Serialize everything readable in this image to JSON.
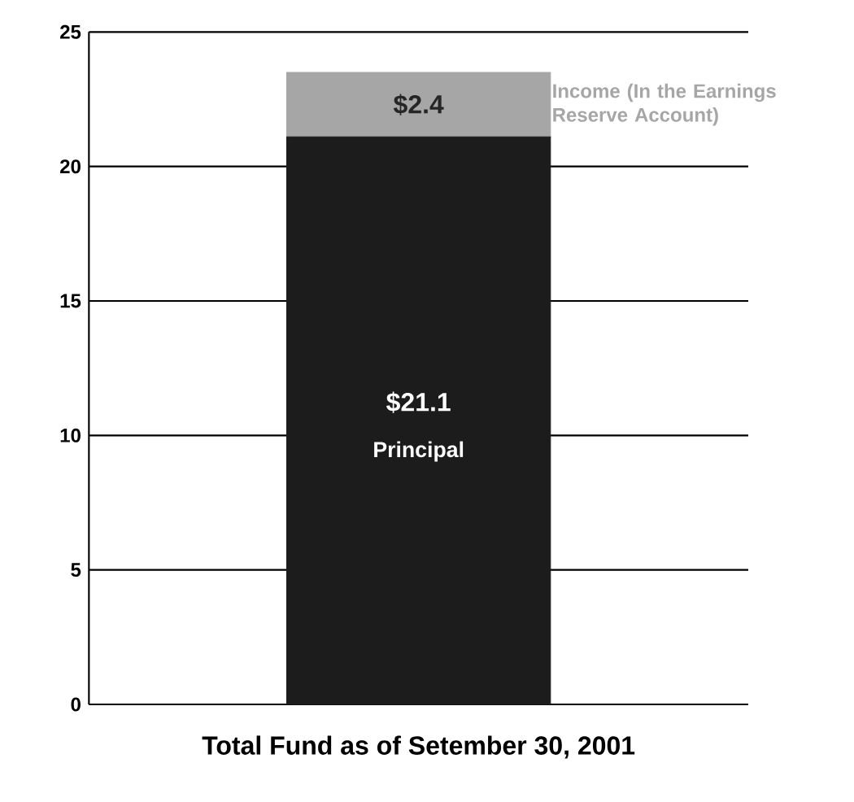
{
  "chart_data": {
    "type": "bar",
    "stacked": true,
    "categories": [
      null
    ],
    "xlabel": "Total Fund as of Setember 30, 2001",
    "ylim": [
      0,
      25
    ],
    "yticks": [
      0,
      5,
      10,
      15,
      20,
      25
    ],
    "grid": "y",
    "series": [
      {
        "name": "Principal",
        "color": "#1c1c1c",
        "values": [
          21.1
        ],
        "value_labels": [
          "$21.1"
        ]
      },
      {
        "name": "Income (In the Earnings Reserve Account)",
        "color": "#a6a6a6",
        "values": [
          2.4
        ],
        "value_labels": [
          "$2.4"
        ]
      }
    ]
  }
}
